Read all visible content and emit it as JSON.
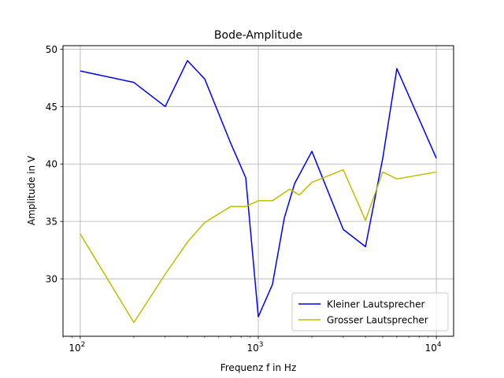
{
  "chart_data": {
    "type": "line",
    "title": "Bode-Amplitude",
    "xlabel": "Frequenz f in Hz",
    "ylabel": "Amplitude in V",
    "xscale": "log",
    "xlim": [
      80,
      12500
    ],
    "ylim": [
      25.0,
      50.3
    ],
    "xticks": [
      100,
      1000,
      10000
    ],
    "xtick_labels": [
      {
        "base": "10",
        "exp": "2"
      },
      {
        "base": "10",
        "exp": "3"
      },
      {
        "base": "10",
        "exp": "4"
      }
    ],
    "yticks": [
      30,
      35,
      40,
      45,
      50
    ],
    "ytick_labels": [
      "30",
      "35",
      "40",
      "45",
      "50"
    ],
    "grid": true,
    "legend_position": "lower-right",
    "series": [
      {
        "name": "Kleiner Lautsprecher",
        "color": "#0000ff",
        "x": [
          100,
          200,
          300,
          400,
          500,
          700,
          850,
          1000,
          1200,
          1400,
          1600,
          2000,
          3000,
          4000,
          5000,
          6000,
          10000
        ],
        "y": [
          48.1,
          47.1,
          45.0,
          49.0,
          47.4,
          41.8,
          38.8,
          26.7,
          29.5,
          35.3,
          38.3,
          41.1,
          34.3,
          32.8,
          40.5,
          48.3,
          40.5
        ]
      },
      {
        "name": "Grosser Lautsprecher",
        "color": "#bfbf00",
        "x": [
          100,
          200,
          300,
          400,
          500,
          700,
          850,
          1000,
          1200,
          1500,
          1700,
          2000,
          3000,
          4000,
          5000,
          6000,
          10000
        ],
        "y": [
          33.9,
          26.2,
          30.4,
          33.2,
          34.9,
          36.3,
          36.3,
          36.8,
          36.8,
          37.8,
          37.3,
          38.4,
          39.5,
          35.1,
          39.3,
          38.7,
          39.3
        ]
      }
    ]
  }
}
